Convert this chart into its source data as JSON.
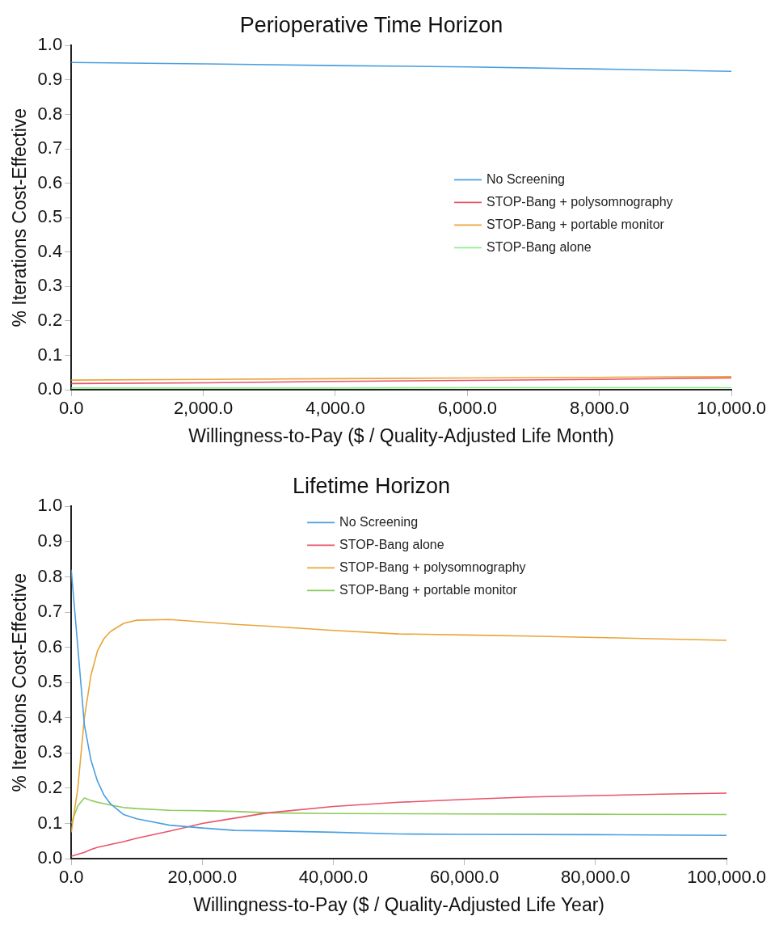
{
  "chart_data": [
    {
      "type": "line",
      "title": "Perioperative Time Horizon",
      "xlabel": "Willingness-to-Pay ($ / Quality-Adjusted Life Month)",
      "ylabel": "% Iterations Cost-Effective",
      "xlim": [
        0,
        10000
      ],
      "xticks": [
        {
          "value": 0,
          "label": "0.0"
        },
        {
          "value": 2000,
          "label": "2,000.0"
        },
        {
          "value": 4000,
          "label": "4,000.0"
        },
        {
          "value": 6000,
          "label": "6,000.0"
        },
        {
          "value": 8000,
          "label": "8,000.0"
        },
        {
          "value": 10000,
          "label": "10,000.0"
        }
      ],
      "ylim": [
        0,
        1
      ],
      "yticks": [
        {
          "value": 0,
          "label": "0.0"
        },
        {
          "value": 0.1,
          "label": "0.1"
        },
        {
          "value": 0.2,
          "label": "0.2"
        },
        {
          "value": 0.3,
          "label": "0.3"
        },
        {
          "value": 0.4,
          "label": "0.4"
        },
        {
          "value": 0.5,
          "label": "0.5"
        },
        {
          "value": 0.6,
          "label": "0.6"
        },
        {
          "value": 0.7,
          "label": "0.7"
        },
        {
          "value": 0.8,
          "label": "0.8"
        },
        {
          "value": 0.9,
          "label": "0.9"
        },
        {
          "value": 1,
          "label": "1.0"
        }
      ],
      "grid": false,
      "legend": "right",
      "marker": "none",
      "line_style": "solid",
      "series": [
        {
          "name": "No Screening",
          "color": "#4a9fe0",
          "x": [
            0,
            2000,
            4000,
            6000,
            8000,
            10000
          ],
          "values": [
            0.951,
            0.947,
            0.942,
            0.938,
            0.932,
            0.925
          ]
        },
        {
          "name": "STOP-Bang + polysomnography",
          "color": "#e8546a",
          "x": [
            0,
            2000,
            4000,
            6000,
            8000,
            10000
          ],
          "values": [
            0.018,
            0.02,
            0.024,
            0.027,
            0.03,
            0.034
          ]
        },
        {
          "name": "STOP-Bang + portable monitor",
          "color": "#e9a53a",
          "x": [
            0,
            2000,
            4000,
            6000,
            8000,
            10000
          ],
          "values": [
            0.028,
            0.03,
            0.032,
            0.034,
            0.036,
            0.038
          ]
        },
        {
          "name": "STOP-Bang alone",
          "color": "#8ef08a",
          "x": [
            0,
            2000,
            4000,
            6000,
            8000,
            10000
          ],
          "values": [
            0.005,
            0.005,
            0.005,
            0.006,
            0.006,
            0.006
          ]
        }
      ]
    },
    {
      "type": "line",
      "title": "Lifetime Horizon",
      "xlabel": "Willingness-to-Pay ($ / Quality-Adjusted Life Year)",
      "ylabel": "% Iterations Cost-Effective",
      "xlim": [
        0,
        100000
      ],
      "xticks": [
        {
          "value": 0,
          "label": "0.0"
        },
        {
          "value": 20000,
          "label": "20,000.0"
        },
        {
          "value": 40000,
          "label": "40,000.0"
        },
        {
          "value": 60000,
          "label": "60,000.0"
        },
        {
          "value": 80000,
          "label": "80,000.0"
        },
        {
          "value": 100000,
          "label": "100,000.0"
        }
      ],
      "ylim": [
        0,
        1
      ],
      "yticks": [
        {
          "value": 0,
          "label": "0.0"
        },
        {
          "value": 0.1,
          "label": "0.1"
        },
        {
          "value": 0.2,
          "label": "0.2"
        },
        {
          "value": 0.3,
          "label": "0.3"
        },
        {
          "value": 0.4,
          "label": "0.4"
        },
        {
          "value": 0.5,
          "label": "0.5"
        },
        {
          "value": 0.6,
          "label": "0.6"
        },
        {
          "value": 0.7,
          "label": "0.7"
        },
        {
          "value": 0.8,
          "label": "0.8"
        },
        {
          "value": 0.9,
          "label": "0.9"
        },
        {
          "value": 1,
          "label": "1.0"
        }
      ],
      "grid": false,
      "legend": "top",
      "marker": "none",
      "line_style": "solid",
      "series": [
        {
          "name": "No Screening",
          "color": "#4a9fe0",
          "x": [
            0,
            1000,
            2000,
            3000,
            4000,
            5000,
            6000,
            8000,
            10000,
            15000,
            20000,
            25000,
            30000,
            40000,
            50000,
            60000,
            80000,
            100000
          ],
          "values": [
            0.82,
            0.6,
            0.38,
            0.28,
            0.22,
            0.18,
            0.155,
            0.125,
            0.113,
            0.095,
            0.087,
            0.08,
            0.079,
            0.075,
            0.07,
            0.069,
            0.068,
            0.066
          ]
        },
        {
          "name": "STOP-Bang alone",
          "color": "#e8546a",
          "x": [
            0,
            2000,
            3000,
            4000,
            6000,
            8000,
            10000,
            15000,
            20000,
            25000,
            30000,
            40000,
            50000,
            60000,
            70000,
            80000,
            90000,
            100000
          ],
          "values": [
            0.007,
            0.018,
            0.026,
            0.032,
            0.04,
            0.048,
            0.058,
            0.078,
            0.1,
            0.115,
            0.13,
            0.148,
            0.16,
            0.168,
            0.175,
            0.179,
            0.183,
            0.186
          ]
        },
        {
          "name": "STOP-Bang + polysomnography",
          "color": "#e9a53a",
          "x": [
            0,
            1000,
            2000,
            3000,
            4000,
            5000,
            6000,
            8000,
            10000,
            15000,
            20000,
            25000,
            30000,
            40000,
            50000,
            60000,
            70000,
            80000,
            90000,
            100000
          ],
          "values": [
            0.075,
            0.2,
            0.4,
            0.52,
            0.59,
            0.625,
            0.645,
            0.668,
            0.677,
            0.679,
            0.672,
            0.665,
            0.66,
            0.648,
            0.638,
            0.635,
            0.632,
            0.628,
            0.624,
            0.62
          ]
        },
        {
          "name": "STOP-Bang + portable monitor",
          "color": "#8ccc5a",
          "x": [
            0,
            1000,
            2000,
            3000,
            4000,
            6000,
            8000,
            10000,
            15000,
            20000,
            25000,
            30000,
            40000,
            60000,
            80000,
            100000
          ],
          "values": [
            0.1,
            0.15,
            0.172,
            0.165,
            0.16,
            0.152,
            0.145,
            0.142,
            0.137,
            0.136,
            0.134,
            0.13,
            0.128,
            0.127,
            0.126,
            0.125
          ]
        }
      ]
    }
  ]
}
